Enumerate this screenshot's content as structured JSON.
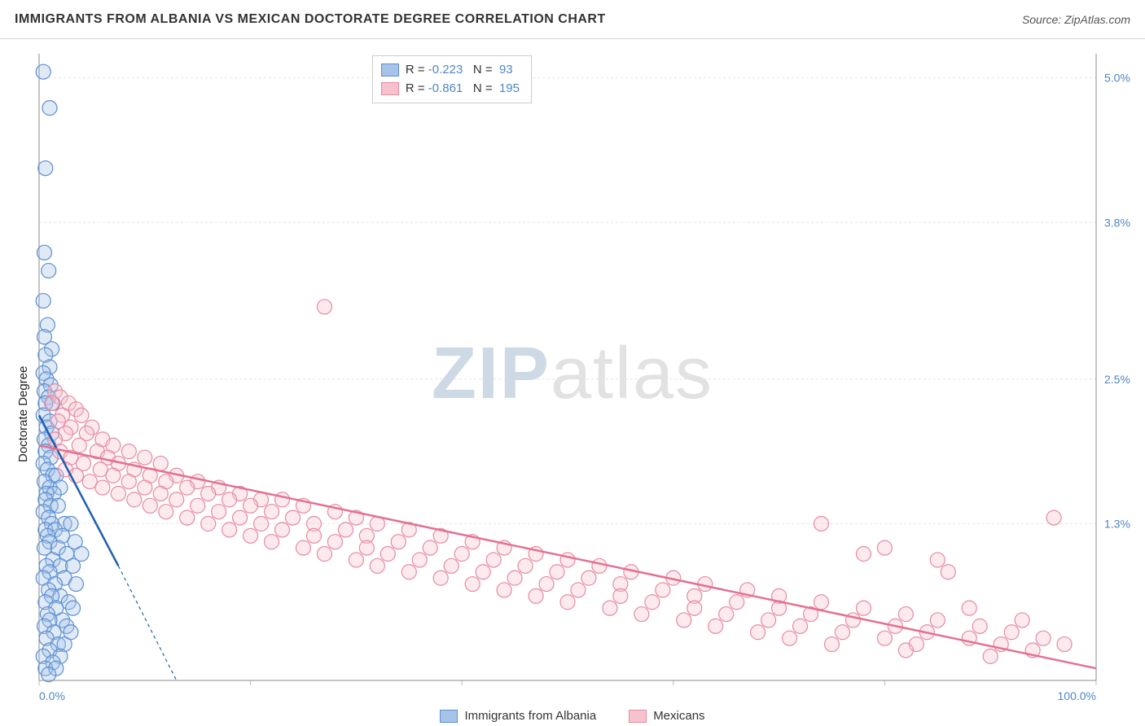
{
  "header": {
    "title": "IMMIGRANTS FROM ALBANIA VS MEXICAN DOCTORATE DEGREE CORRELATION CHART",
    "source_prefix": "Source: ",
    "source_name": "ZipAtlas.com"
  },
  "watermark": {
    "zip": "ZIP",
    "atlas": "atlas"
  },
  "chart": {
    "type": "scatter",
    "background_color": "#ffffff",
    "grid_color": "#e4e4e4",
    "axis_color": "#888888",
    "tick_color": "#bbbbbb",
    "xlim": [
      0,
      100
    ],
    "ylim": [
      0,
      5.2
    ],
    "x_ticks": [
      0,
      20,
      40,
      60,
      80,
      100
    ],
    "x_tick_labels_shown": {
      "0": "0.0%",
      "100": "100.0%"
    },
    "y_ticks": [
      1.3,
      2.5,
      3.8,
      5.0
    ],
    "y_tick_labels": [
      "1.3%",
      "2.5%",
      "3.8%",
      "5.0%"
    ],
    "y_axis_label": "Doctorate Degree",
    "tick_label_color": "#4f86c6",
    "tick_label_fontsize": 14,
    "marker_radius": 9,
    "marker_stroke_width": 1.2,
    "marker_fill_opacity": 0.35,
    "series": [
      {
        "name": "Immigrants from Albania",
        "color_fill": "#a7c4e8",
        "color_stroke": "#5b8fd0",
        "line_color": "#1f5fb0",
        "line_width": 2.5,
        "line_dash_extension": "4 4",
        "trend": {
          "x1": 0,
          "y1": 2.2,
          "x2": 7.5,
          "y2": 0.95
        },
        "dash_ext": {
          "x1": 7.5,
          "y1": 0.95,
          "x2": 13,
          "y2": 0.0
        },
        "R": "-0.223",
        "N": "93",
        "points": [
          [
            0.4,
            5.05
          ],
          [
            1.0,
            4.75
          ],
          [
            0.6,
            4.25
          ],
          [
            0.5,
            3.55
          ],
          [
            0.9,
            3.4
          ],
          [
            0.4,
            3.15
          ],
          [
            0.8,
            2.95
          ],
          [
            0.5,
            2.85
          ],
          [
            1.2,
            2.75
          ],
          [
            0.6,
            2.7
          ],
          [
            1.0,
            2.6
          ],
          [
            0.4,
            2.55
          ],
          [
            0.7,
            2.5
          ],
          [
            1.1,
            2.45
          ],
          [
            0.5,
            2.4
          ],
          [
            0.9,
            2.35
          ],
          [
            1.3,
            2.3
          ],
          [
            0.6,
            2.3
          ],
          [
            0.4,
            2.2
          ],
          [
            1.0,
            2.15
          ],
          [
            0.7,
            2.1
          ],
          [
            1.2,
            2.05
          ],
          [
            0.5,
            2.0
          ],
          [
            0.9,
            1.95
          ],
          [
            0.6,
            1.9
          ],
          [
            1.1,
            1.85
          ],
          [
            0.4,
            1.8
          ],
          [
            0.8,
            1.75
          ],
          [
            1.3,
            1.7
          ],
          [
            1.6,
            1.7
          ],
          [
            0.5,
            1.65
          ],
          [
            1.0,
            1.6
          ],
          [
            2.0,
            1.6
          ],
          [
            0.7,
            1.55
          ],
          [
            1.4,
            1.55
          ],
          [
            0.6,
            1.5
          ],
          [
            1.1,
            1.45
          ],
          [
            1.8,
            1.45
          ],
          [
            0.4,
            1.4
          ],
          [
            0.9,
            1.35
          ],
          [
            2.4,
            1.3
          ],
          [
            1.2,
            1.3
          ],
          [
            3.0,
            1.3
          ],
          [
            0.6,
            1.25
          ],
          [
            1.5,
            1.25
          ],
          [
            2.2,
            1.2
          ],
          [
            0.8,
            1.2
          ],
          [
            3.4,
            1.15
          ],
          [
            1.0,
            1.15
          ],
          [
            1.8,
            1.1
          ],
          [
            0.5,
            1.1
          ],
          [
            2.6,
            1.05
          ],
          [
            4.0,
            1.05
          ],
          [
            1.3,
            1.0
          ],
          [
            0.7,
            0.95
          ],
          [
            2.0,
            0.95
          ],
          [
            3.2,
            0.95
          ],
          [
            1.0,
            0.9
          ],
          [
            0.4,
            0.85
          ],
          [
            2.4,
            0.85
          ],
          [
            1.5,
            0.8
          ],
          [
            0.9,
            0.75
          ],
          [
            3.5,
            0.8
          ],
          [
            2.0,
            0.7
          ],
          [
            1.2,
            0.7
          ],
          [
            0.6,
            0.65
          ],
          [
            2.8,
            0.65
          ],
          [
            1.6,
            0.6
          ],
          [
            0.8,
            0.55
          ],
          [
            3.2,
            0.6
          ],
          [
            2.2,
            0.5
          ],
          [
            1.0,
            0.5
          ],
          [
            0.5,
            0.45
          ],
          [
            2.6,
            0.45
          ],
          [
            1.4,
            0.4
          ],
          [
            3.0,
            0.4
          ],
          [
            0.7,
            0.35
          ],
          [
            1.8,
            0.3
          ],
          [
            2.4,
            0.3
          ],
          [
            1.0,
            0.25
          ],
          [
            0.4,
            0.2
          ],
          [
            2.0,
            0.2
          ],
          [
            1.3,
            0.15
          ],
          [
            0.6,
            0.1
          ],
          [
            1.6,
            0.1
          ],
          [
            0.9,
            0.05
          ]
        ]
      },
      {
        "name": "Mexicans",
        "color_fill": "#f6c2cd",
        "color_stroke": "#e68aa0",
        "line_color": "#e47092",
        "line_width": 2.5,
        "trend": {
          "x1": 0,
          "y1": 1.95,
          "x2": 100,
          "y2": 0.1
        },
        "R": "-0.861",
        "N": "195",
        "points": [
          [
            1.5,
            2.4
          ],
          [
            2.0,
            2.35
          ],
          [
            2.8,
            2.3
          ],
          [
            1.2,
            2.3
          ],
          [
            3.5,
            2.25
          ],
          [
            2.2,
            2.2
          ],
          [
            27,
            3.1
          ],
          [
            4.0,
            2.2
          ],
          [
            1.8,
            2.15
          ],
          [
            3.0,
            2.1
          ],
          [
            5.0,
            2.1
          ],
          [
            2.5,
            2.05
          ],
          [
            4.5,
            2.05
          ],
          [
            6.0,
            2.0
          ],
          [
            1.5,
            2.0
          ],
          [
            3.8,
            1.95
          ],
          [
            7.0,
            1.95
          ],
          [
            2.0,
            1.9
          ],
          [
            5.5,
            1.9
          ],
          [
            8.5,
            1.9
          ],
          [
            3.0,
            1.85
          ],
          [
            6.5,
            1.85
          ],
          [
            10,
            1.85
          ],
          [
            4.2,
            1.8
          ],
          [
            7.5,
            1.8
          ],
          [
            11.5,
            1.8
          ],
          [
            2.5,
            1.75
          ],
          [
            5.8,
            1.75
          ],
          [
            9.0,
            1.75
          ],
          [
            13,
            1.7
          ],
          [
            3.5,
            1.7
          ],
          [
            7.0,
            1.7
          ],
          [
            10.5,
            1.7
          ],
          [
            15,
            1.65
          ],
          [
            4.8,
            1.65
          ],
          [
            8.5,
            1.65
          ],
          [
            12,
            1.65
          ],
          [
            17,
            1.6
          ],
          [
            6.0,
            1.6
          ],
          [
            10,
            1.6
          ],
          [
            14,
            1.6
          ],
          [
            19,
            1.55
          ],
          [
            7.5,
            1.55
          ],
          [
            11.5,
            1.55
          ],
          [
            16,
            1.55
          ],
          [
            21,
            1.5
          ],
          [
            9.0,
            1.5
          ],
          [
            13,
            1.5
          ],
          [
            18,
            1.5
          ],
          [
            23,
            1.5
          ],
          [
            10.5,
            1.45
          ],
          [
            15,
            1.45
          ],
          [
            20,
            1.45
          ],
          [
            25,
            1.45
          ],
          [
            12,
            1.4
          ],
          [
            17,
            1.4
          ],
          [
            22,
            1.4
          ],
          [
            28,
            1.4
          ],
          [
            14,
            1.35
          ],
          [
            19,
            1.35
          ],
          [
            24,
            1.35
          ],
          [
            30,
            1.35
          ],
          [
            16,
            1.3
          ],
          [
            21,
            1.3
          ],
          [
            26,
            1.3
          ],
          [
            32,
            1.3
          ],
          [
            18,
            1.25
          ],
          [
            23,
            1.25
          ],
          [
            29,
            1.25
          ],
          [
            35,
            1.25
          ],
          [
            20,
            1.2
          ],
          [
            26,
            1.2
          ],
          [
            31,
            1.2
          ],
          [
            38,
            1.2
          ],
          [
            22,
            1.15
          ],
          [
            28,
            1.15
          ],
          [
            34,
            1.15
          ],
          [
            41,
            1.15
          ],
          [
            25,
            1.1
          ],
          [
            31,
            1.1
          ],
          [
            37,
            1.1
          ],
          [
            44,
            1.1
          ],
          [
            27,
            1.05
          ],
          [
            33,
            1.05
          ],
          [
            40,
            1.05
          ],
          [
            47,
            1.05
          ],
          [
            30,
            1.0
          ],
          [
            36,
            1.0
          ],
          [
            43,
            1.0
          ],
          [
            50,
            1.0
          ],
          [
            32,
            0.95
          ],
          [
            39,
            0.95
          ],
          [
            46,
            0.95
          ],
          [
            53,
            0.95
          ],
          [
            35,
            0.9
          ],
          [
            42,
            0.9
          ],
          [
            49,
            0.9
          ],
          [
            56,
            0.9
          ],
          [
            38,
            0.85
          ],
          [
            45,
            0.85
          ],
          [
            52,
            0.85
          ],
          [
            60,
            0.85
          ],
          [
            41,
            0.8
          ],
          [
            48,
            0.8
          ],
          [
            55,
            0.8
          ],
          [
            63,
            0.8
          ],
          [
            44,
            0.75
          ],
          [
            51,
            0.75
          ],
          [
            59,
            0.75
          ],
          [
            67,
            0.75
          ],
          [
            47,
            0.7
          ],
          [
            55,
            0.7
          ],
          [
            62,
            0.7
          ],
          [
            70,
            0.7
          ],
          [
            50,
            0.65
          ],
          [
            58,
            0.65
          ],
          [
            66,
            0.65
          ],
          [
            74,
            0.65
          ],
          [
            54,
            0.6
          ],
          [
            62,
            0.6
          ],
          [
            70,
            0.6
          ],
          [
            78,
            0.6
          ],
          [
            57,
            0.55
          ],
          [
            65,
            0.55
          ],
          [
            73,
            0.55
          ],
          [
            82,
            0.55
          ],
          [
            61,
            0.5
          ],
          [
            69,
            0.5
          ],
          [
            77,
            0.5
          ],
          [
            85,
            0.5
          ],
          [
            64,
            0.45
          ],
          [
            72,
            0.45
          ],
          [
            81,
            0.45
          ],
          [
            89,
            0.45
          ],
          [
            68,
            0.4
          ],
          [
            76,
            0.4
          ],
          [
            84,
            0.4
          ],
          [
            92,
            0.4
          ],
          [
            71,
            0.35
          ],
          [
            80,
            0.35
          ],
          [
            88,
            0.35
          ],
          [
            95,
            0.35
          ],
          [
            75,
            0.3
          ],
          [
            83,
            0.3
          ],
          [
            91,
            0.3
          ],
          [
            97,
            0.3
          ],
          [
            78,
            1.05
          ],
          [
            86,
            0.9
          ],
          [
            94,
            0.25
          ],
          [
            80,
            1.1
          ],
          [
            82,
            0.25
          ],
          [
            90,
            0.2
          ],
          [
            74,
            1.3
          ],
          [
            96,
            1.35
          ],
          [
            85,
            1.0
          ],
          [
            88,
            0.6
          ],
          [
            93,
            0.5
          ]
        ]
      }
    ],
    "legend_box": {
      "labels": {
        "R": "R =",
        "N": "N ="
      }
    },
    "bottom_legend": [
      {
        "label": "Immigrants from Albania",
        "fill": "#a7c4e8",
        "stroke": "#5b8fd0"
      },
      {
        "label": "Mexicans",
        "fill": "#f6c2cd",
        "stroke": "#e68aa0"
      }
    ]
  }
}
